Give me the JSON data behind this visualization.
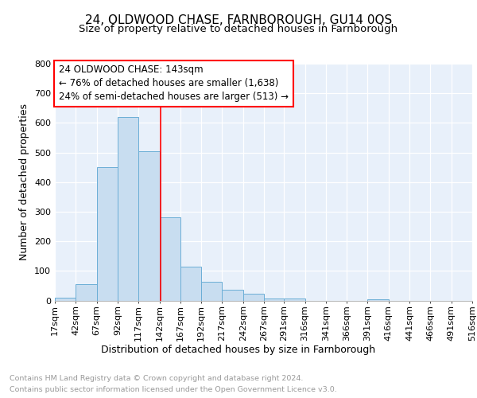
{
  "title": "24, OLDWOOD CHASE, FARNBOROUGH, GU14 0QS",
  "subtitle": "Size of property relative to detached houses in Farnborough",
  "xlabel": "Distribution of detached houses by size in Farnborough",
  "ylabel": "Number of detached properties",
  "bar_color": "#c8ddf0",
  "bar_edge_color": "#6baed6",
  "background_color": "#e8f0fa",
  "bin_starts": [
    17,
    42,
    67,
    92,
    117,
    142,
    167,
    192,
    217,
    242,
    267,
    291,
    316,
    341,
    366,
    391,
    416,
    441,
    466,
    491
  ],
  "bin_width": 25,
  "bar_heights": [
    10,
    55,
    450,
    620,
    505,
    280,
    115,
    62,
    35,
    22,
    8,
    8,
    0,
    0,
    0,
    5,
    0,
    0,
    0,
    0
  ],
  "tick_labels": [
    "17sqm",
    "42sqm",
    "67sqm",
    "92sqm",
    "117sqm",
    "142sqm",
    "167sqm",
    "192sqm",
    "217sqm",
    "242sqm",
    "267sqm",
    "291sqm",
    "316sqm",
    "341sqm",
    "366sqm",
    "391sqm",
    "416sqm",
    "441sqm",
    "466sqm",
    "491sqm",
    "516sqm"
  ],
  "ylim": [
    0,
    800
  ],
  "yticks": [
    0,
    100,
    200,
    300,
    400,
    500,
    600,
    700,
    800
  ],
  "red_line_x": 143,
  "annotation_line0": "24 OLDWOOD CHASE: 143sqm",
  "annotation_line1": "← 76% of detached houses are smaller (1,638)",
  "annotation_line2": "24% of semi-detached houses are larger (513) →",
  "footer_line1": "Contains HM Land Registry data © Crown copyright and database right 2024.",
  "footer_line2": "Contains public sector information licensed under the Open Government Licence v3.0.",
  "title_fontsize": 11,
  "subtitle_fontsize": 9.5,
  "axis_label_fontsize": 9,
  "tick_fontsize": 8,
  "ylabel_fontsize": 9,
  "annotation_fontsize": 8.5,
  "footer_fontsize": 6.8
}
